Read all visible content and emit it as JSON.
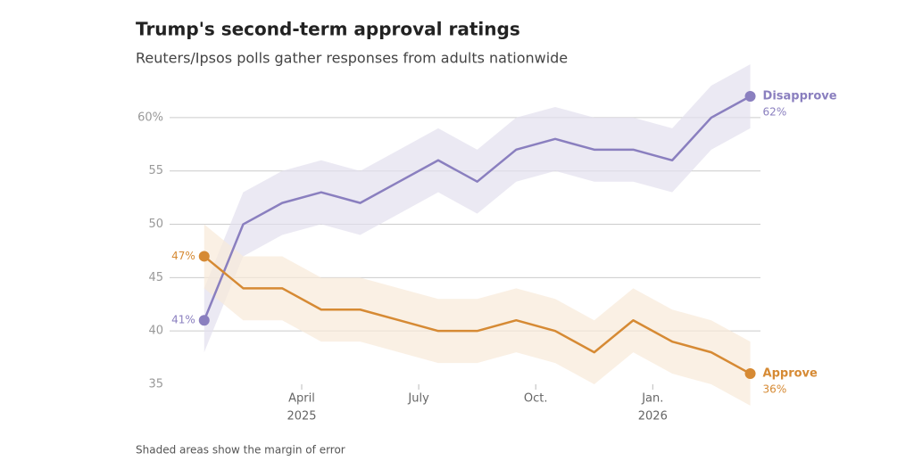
{
  "chart_data": {
    "type": "line",
    "title": "Trump's second-term approval ratings",
    "subtitle": "Reuters/Ipsos polls gather responses from adults nationwide",
    "note": "Shaded areas show the margin of error",
    "x": [
      "2025-01",
      "2025-02",
      "2025-03",
      "2025-04",
      "2025-05",
      "2025-06",
      "2025-07",
      "2025-08",
      "2025-09",
      "2025-10",
      "2025-11",
      "2025-12",
      "2026-01",
      "2026-02",
      "2026-03"
    ],
    "series": [
      {
        "name": "Disapprove",
        "color": "#8a7fbf",
        "band_color": "#e3e0ee",
        "margin": 3,
        "values": [
          41,
          50,
          52,
          53,
          52,
          54,
          56,
          54,
          57,
          58,
          57,
          57,
          56,
          60,
          62
        ],
        "value_labels": [
          "41%",
          null,
          null,
          null,
          null,
          null,
          null,
          null,
          null,
          null,
          null,
          null,
          null,
          null,
          "62%"
        ]
      },
      {
        "name": "Approve",
        "color": "#d68a34",
        "band_color": "#f8ead8",
        "margin": 3,
        "values": [
          47,
          44,
          44,
          42,
          42,
          41,
          40,
          40,
          41,
          40,
          38,
          41,
          39,
          38,
          36
        ],
        "value_labels": [
          "47%",
          null,
          null,
          null,
          null,
          null,
          null,
          null,
          null,
          null,
          null,
          null,
          null,
          null,
          "36%"
        ]
      }
    ],
    "ylim": [
      35,
      62
    ],
    "yticks": [
      {
        "value": 60,
        "label": "60%"
      },
      55,
      50,
      45,
      40,
      35
    ],
    "xticks": [
      {
        "value": "2025-04",
        "label": "April",
        "year": "2025"
      },
      {
        "value": "2025-07",
        "label": "July"
      },
      {
        "value": "2025-10",
        "label": "Oct."
      },
      {
        "value": "2026-01",
        "label": "Jan.",
        "year": "2026"
      }
    ],
    "grid": true
  }
}
